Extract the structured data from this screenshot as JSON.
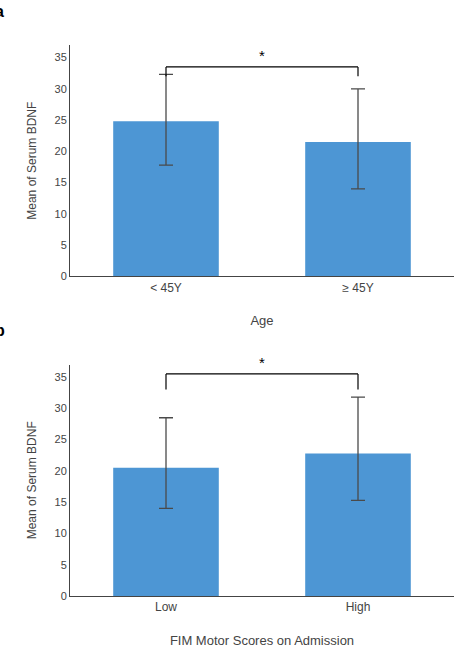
{
  "chart_data": [
    {
      "type": "bar",
      "label": "a",
      "categories": [
        "< 45Y",
        "≥ 45Y"
      ],
      "values": [
        24.8,
        21.5
      ],
      "yerr_upper": [
        7.5,
        8.5
      ],
      "yerr_lower": [
        7.0,
        7.5
      ],
      "color": "#4d96d4",
      "xlabel": "Age",
      "ylabel": "Mean of Serum BDNF",
      "ylim": [
        0,
        37
      ],
      "yticks": [
        0,
        5,
        10,
        15,
        20,
        25,
        30,
        35
      ],
      "bracket": {
        "y": 33.5,
        "drop": 1.5,
        "text": "*"
      },
      "grid": false
    },
    {
      "type": "bar",
      "label": "b",
      "categories": [
        "Low",
        "High"
      ],
      "values": [
        20.5,
        22.8
      ],
      "yerr_upper": [
        8.0,
        9.0
      ],
      "yerr_lower": [
        6.5,
        7.5
      ],
      "color": "#4d96d4",
      "xlabel": "FIM Motor Scores on Admission",
      "ylabel": "Mean of Serum BDNF",
      "ylim": [
        0,
        37
      ],
      "yticks": [
        0,
        5,
        10,
        15,
        20,
        25,
        30,
        35
      ],
      "bracket": {
        "y": 35.5,
        "drop": 2.5,
        "text": "*"
      },
      "grid": false
    }
  ]
}
